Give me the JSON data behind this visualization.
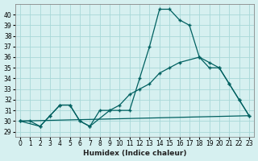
{
  "xlabel": "Humidex (Indice chaleur)",
  "background_color": "#d6f0f0",
  "grid_color": "#a8d8d8",
  "line_color": "#006060",
  "xlim": [
    -0.5,
    23.5
  ],
  "ylim": [
    28.5,
    41.0
  ],
  "yticks": [
    29,
    30,
    31,
    32,
    33,
    34,
    35,
    36,
    37,
    38,
    39,
    40
  ],
  "xticks": [
    0,
    1,
    2,
    3,
    4,
    5,
    6,
    7,
    8,
    9,
    10,
    11,
    12,
    13,
    14,
    15,
    16,
    17,
    18,
    19,
    20,
    21,
    22,
    23
  ],
  "line1_x": [
    0,
    1,
    2,
    3,
    4,
    5,
    6,
    7,
    8,
    9,
    10,
    11,
    12,
    13,
    14,
    15,
    16,
    17,
    18,
    19,
    20,
    21,
    22,
    23
  ],
  "line1_y": [
    30,
    30,
    29.5,
    30.5,
    31.5,
    31.5,
    30,
    29.5,
    31,
    31,
    31,
    31,
    34,
    37,
    40.5,
    40.5,
    39.5,
    39,
    36,
    35,
    35,
    33.5,
    32,
    30.5
  ],
  "line2_x": [
    0,
    2,
    3,
    4,
    5,
    6,
    7,
    9,
    10,
    11,
    12,
    13,
    14,
    15,
    16,
    18,
    19,
    20,
    21,
    22,
    23
  ],
  "line2_y": [
    30,
    29.5,
    30.5,
    31.5,
    31.5,
    30,
    29.5,
    31,
    31.5,
    32.5,
    33,
    33.5,
    34.5,
    35,
    35.5,
    36,
    35.5,
    35,
    33.5,
    32,
    30.5
  ],
  "line3_x": [
    0,
    23
  ],
  "line3_y": [
    30.0,
    30.5
  ]
}
